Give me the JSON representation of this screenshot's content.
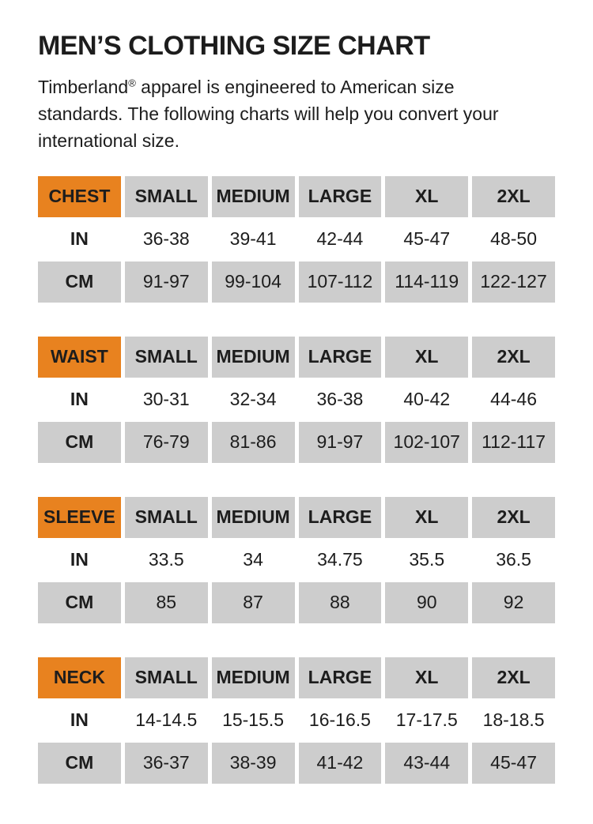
{
  "header": {
    "title": "MEN’S CLOTHING SIZE CHART",
    "intro_brand": "Timberland",
    "intro_reg": "®",
    "intro_rest": " apparel is engineered to American size standards. The following charts will help you convert your international size."
  },
  "colors": {
    "accent_orange": "#E8821F",
    "cell_gray": "#CDCDCD",
    "text": "#1D1D1D",
    "background": "#FFFFFF"
  },
  "tables": [
    {
      "label": "CHEST",
      "sizes": [
        "SMALL",
        "MEDIUM",
        "LARGE",
        "XL",
        "2XL"
      ],
      "in": {
        "unit": "IN",
        "values": [
          "36-38",
          "39-41",
          "42-44",
          "45-47",
          "48-50"
        ]
      },
      "cm": {
        "unit": "CM",
        "values": [
          "91-97",
          "99-104",
          "107-112",
          "114-119",
          "122-127"
        ]
      }
    },
    {
      "label": "WAIST",
      "sizes": [
        "SMALL",
        "MEDIUM",
        "LARGE",
        "XL",
        "2XL"
      ],
      "in": {
        "unit": "IN",
        "values": [
          "30-31",
          "32-34",
          "36-38",
          "40-42",
          "44-46"
        ]
      },
      "cm": {
        "unit": "CM",
        "values": [
          "76-79",
          "81-86",
          "91-97",
          "102-107",
          "112-117"
        ]
      }
    },
    {
      "label": "SLEEVE",
      "sizes": [
        "SMALL",
        "MEDIUM",
        "LARGE",
        "XL",
        "2XL"
      ],
      "in": {
        "unit": "IN",
        "values": [
          "33.5",
          "34",
          "34.75",
          "35.5",
          "36.5"
        ]
      },
      "cm": {
        "unit": "CM",
        "values": [
          "85",
          "87",
          "88",
          "90",
          "92"
        ]
      }
    },
    {
      "label": "NECK",
      "sizes": [
        "SMALL",
        "MEDIUM",
        "LARGE",
        "XL",
        "2XL"
      ],
      "in": {
        "unit": "IN",
        "values": [
          "14-14.5",
          "15-15.5",
          "16-16.5",
          "17-17.5",
          "18-18.5"
        ]
      },
      "cm": {
        "unit": "CM",
        "values": [
          "36-37",
          "38-39",
          "41-42",
          "43-44",
          "45-47"
        ]
      }
    }
  ]
}
